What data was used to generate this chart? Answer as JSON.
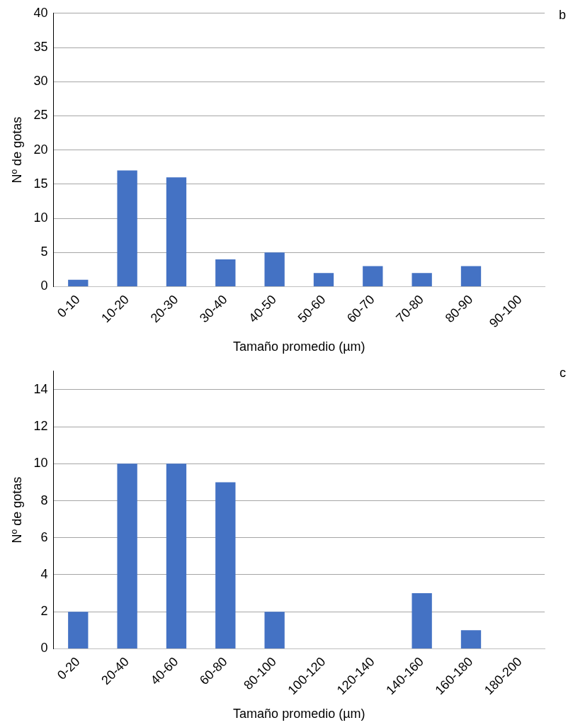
{
  "chart_data": [
    {
      "type": "bar",
      "xlabel": "Tamaño promedio (µm)",
      "ylabel": "Nº de gotas",
      "annotations": [
        "b"
      ],
      "categories": [
        "0-10",
        "10-20",
        "20-30",
        "30-40",
        "40-50",
        "50-60",
        "60-70",
        "70-80",
        "80-90",
        "90-100"
      ],
      "values": [
        1,
        17,
        16,
        4,
        5,
        2,
        3,
        2,
        3,
        0
      ],
      "color": "#4472c4",
      "ylim": [
        0,
        40
      ],
      "yticks": [
        0,
        5,
        10,
        15,
        20,
        25,
        30,
        35,
        40
      ],
      "grid": "y"
    },
    {
      "type": "bar",
      "xlabel": "Tamaño promedio (µm)",
      "ylabel": "Nº de gotas",
      "annotations": [
        "c"
      ],
      "categories": [
        "0-20",
        "20-40",
        "40-60",
        "60-80",
        "80-100",
        "100-120",
        "120-140",
        "140-160",
        "160-180",
        "180-200"
      ],
      "values": [
        2,
        10,
        10,
        9,
        2,
        0,
        0,
        3,
        1,
        0
      ],
      "color": "#4472c4",
      "ylim": [
        0,
        15
      ],
      "yticks": [
        0,
        2,
        4,
        6,
        8,
        10,
        12,
        14
      ],
      "grid": "y"
    }
  ]
}
